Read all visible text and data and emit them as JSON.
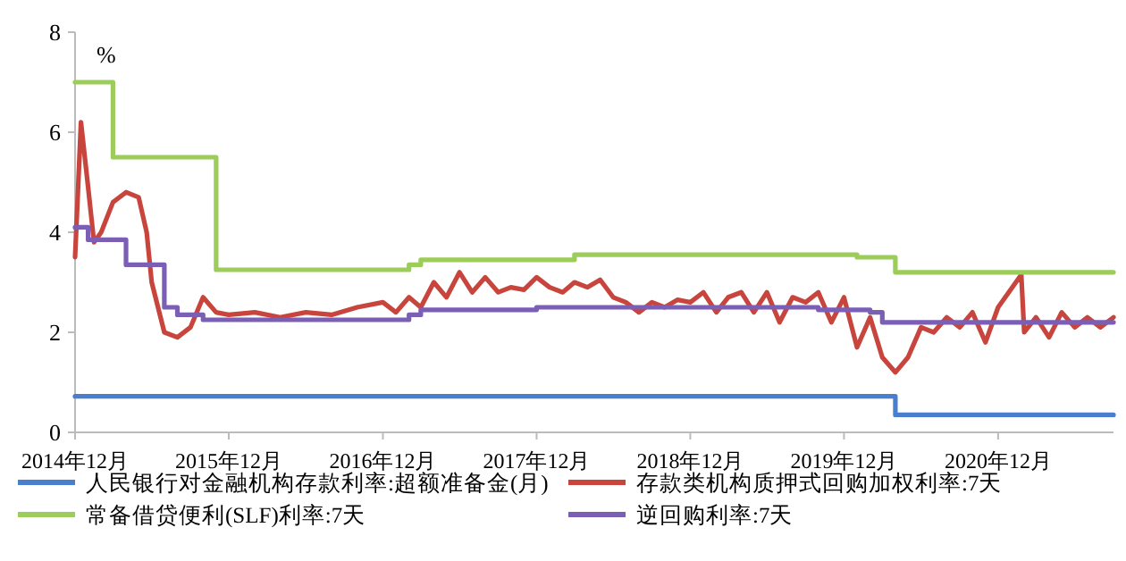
{
  "chart_data": {
    "type": "line",
    "ylabel": "%",
    "ylim": [
      0,
      8
    ],
    "yticks": [
      0,
      2,
      4,
      6,
      8
    ],
    "xlim": [
      "2014-12",
      "2021-09"
    ],
    "xticks": [
      {
        "value": "2014-12",
        "label": "2014年12月"
      },
      {
        "value": "2015-12",
        "label": "2015年12月"
      },
      {
        "value": "2016-12",
        "label": "2016年12月"
      },
      {
        "value": "2017-12",
        "label": "2017年12月"
      },
      {
        "value": "2018-12",
        "label": "2018年12月"
      },
      {
        "value": "2019-12",
        "label": "2019年12月"
      },
      {
        "value": "2020-12",
        "label": "2020年12月"
      }
    ],
    "grid": false,
    "legend": "bottom",
    "marker": "none",
    "line_style": "solid",
    "series": [
      {
        "name": "人民银行对金融机构存款利率:超额准备金(月)",
        "type": "step",
        "color": "#4a7fd0",
        "x": [
          "2014-12",
          "2020-04",
          "2021-09"
        ],
        "values": [
          0.72,
          0.35,
          0.35
        ]
      },
      {
        "name": "存款类机构质押式回购加权利率:7天",
        "type": "line",
        "color": "#c8453e",
        "x": [
          "2014-12",
          "2014-12-15",
          "2015-01",
          "2015-01-15",
          "2015-02",
          "2015-03",
          "2015-04",
          "2015-05",
          "2015-05-20",
          "2015-06",
          "2015-07",
          "2015-08",
          "2015-09",
          "2015-10",
          "2015-11",
          "2015-12",
          "2016-02",
          "2016-04",
          "2016-06",
          "2016-08",
          "2016-10",
          "2016-12",
          "2017-01",
          "2017-02",
          "2017-03",
          "2017-04",
          "2017-05",
          "2017-06",
          "2017-07",
          "2017-08",
          "2017-09",
          "2017-10",
          "2017-11",
          "2017-12",
          "2018-01",
          "2018-02",
          "2018-03",
          "2018-04",
          "2018-05",
          "2018-06",
          "2018-07",
          "2018-08",
          "2018-09",
          "2018-10",
          "2018-11",
          "2018-12",
          "2019-01",
          "2019-02",
          "2019-03",
          "2019-04",
          "2019-05",
          "2019-06",
          "2019-07",
          "2019-08",
          "2019-09",
          "2019-10",
          "2019-11",
          "2019-12",
          "2020-01",
          "2020-02",
          "2020-03",
          "2020-04",
          "2020-05",
          "2020-06",
          "2020-07",
          "2020-08",
          "2020-09",
          "2020-10",
          "2020-11",
          "2020-12",
          "2021-01-25",
          "2021-02",
          "2021-03",
          "2021-04",
          "2021-05",
          "2021-06",
          "2021-07",
          "2021-08",
          "2021-09"
        ],
        "values": [
          3.5,
          6.2,
          4.9,
          3.8,
          4.0,
          4.6,
          4.8,
          4.7,
          4.0,
          3.0,
          2.0,
          1.9,
          2.1,
          2.7,
          2.4,
          2.35,
          2.4,
          2.3,
          2.4,
          2.35,
          2.5,
          2.6,
          2.4,
          2.7,
          2.5,
          3.0,
          2.7,
          3.2,
          2.8,
          3.1,
          2.8,
          2.9,
          2.85,
          3.1,
          2.9,
          2.8,
          3.0,
          2.9,
          3.05,
          2.7,
          2.6,
          2.4,
          2.6,
          2.5,
          2.65,
          2.6,
          2.8,
          2.4,
          2.7,
          2.8,
          2.4,
          2.8,
          2.2,
          2.7,
          2.6,
          2.8,
          2.2,
          2.7,
          1.7,
          2.3,
          1.5,
          1.2,
          1.5,
          2.1,
          2.0,
          2.3,
          2.1,
          2.4,
          1.8,
          2.5,
          3.15,
          2.0,
          2.3,
          1.9,
          2.4,
          2.1,
          2.3,
          2.1,
          2.3
        ]
      },
      {
        "name": "常备借贷便利(SLF)利率:7天",
        "type": "step",
        "color": "#9ccc5a",
        "x": [
          "2014-12",
          "2015-03",
          "2015-11",
          "2017-02",
          "2017-03",
          "2018-03",
          "2020-01",
          "2020-04",
          "2021-09"
        ],
        "values": [
          7.0,
          5.5,
          3.25,
          3.35,
          3.45,
          3.55,
          3.5,
          3.2,
          3.2
        ]
      },
      {
        "name": "逆回购利率:7天",
        "type": "step",
        "color": "#7b5fb5",
        "x": [
          "2014-12",
          "2015-01",
          "2015-04",
          "2015-07",
          "2015-08",
          "2015-10",
          "2017-02",
          "2017-03",
          "2017-12",
          "2019-10",
          "2020-02",
          "2020-03",
          "2021-09"
        ],
        "values": [
          4.1,
          3.85,
          3.35,
          2.5,
          2.35,
          2.25,
          2.35,
          2.45,
          2.5,
          2.45,
          2.4,
          2.2,
          2.2
        ]
      }
    ]
  }
}
